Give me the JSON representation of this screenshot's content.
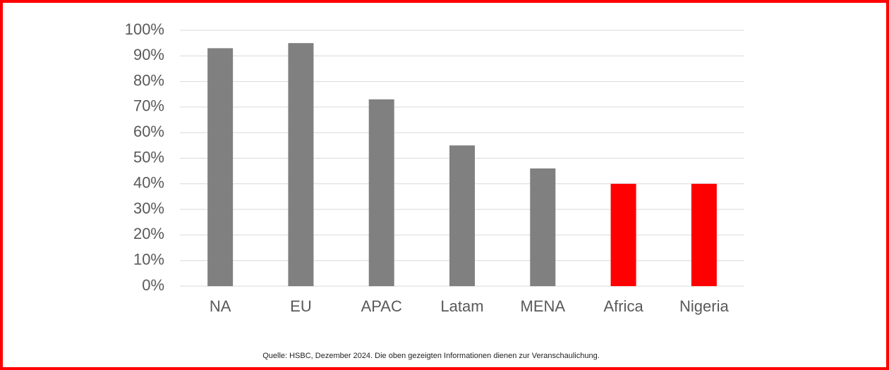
{
  "chart_data": {
    "type": "bar",
    "categories": [
      "NA",
      "EU",
      "APAC",
      "Latam",
      "MENA",
      "Africa",
      "Nigeria"
    ],
    "values": [
      93,
      95,
      73,
      55,
      46,
      40,
      40
    ],
    "colors": [
      "#808080",
      "#808080",
      "#808080",
      "#808080",
      "#808080",
      "#ff0000",
      "#ff0000"
    ],
    "ylim": [
      0,
      100
    ],
    "yticks": [
      {
        "value": 0,
        "label": "0%"
      },
      {
        "value": 10,
        "label": "10%"
      },
      {
        "value": 20,
        "label": "20%"
      },
      {
        "value": 30,
        "label": "30%"
      },
      {
        "value": 40,
        "label": "40%"
      },
      {
        "value": 50,
        "label": "50%"
      },
      {
        "value": 60,
        "label": "60%"
      },
      {
        "value": 70,
        "label": "70%"
      },
      {
        "value": 80,
        "label": "80%"
      },
      {
        "value": 90,
        "label": "90%"
      },
      {
        "value": 100,
        "label": "100%"
      }
    ],
    "grid": true,
    "source": "Quelle: HSBC, Dezember 2024. Die oben gezeigten Informationen dienen zur Veranschaulichung."
  }
}
